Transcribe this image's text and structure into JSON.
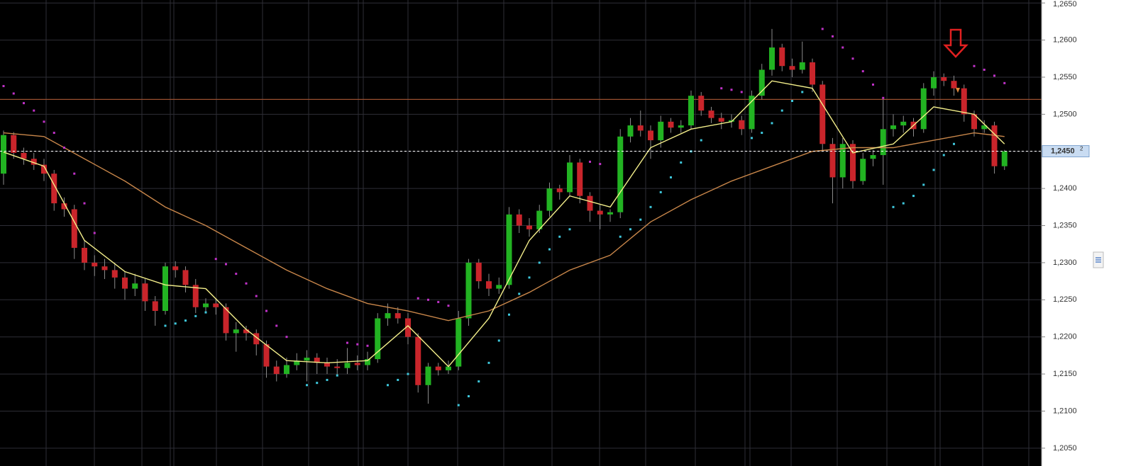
{
  "chart_data": {
    "type": "candlestick",
    "ylim": [
      1.2026,
      1.2654
    ],
    "yticks": [
      {
        "value": 1.265,
        "label": "1,2650"
      },
      {
        "value": 1.26,
        "label": "1,2600"
      },
      {
        "value": 1.255,
        "label": "1,2550"
      },
      {
        "value": 1.25,
        "label": "1,2500"
      },
      {
        "value": 1.245,
        "label": "1,2450"
      },
      {
        "value": 1.24,
        "label": "1,2400"
      },
      {
        "value": 1.235,
        "label": "1,2350"
      },
      {
        "value": 1.23,
        "label": "1,2300"
      },
      {
        "value": 1.225,
        "label": "1,2250"
      },
      {
        "value": 1.22,
        "label": "1,2200"
      },
      {
        "value": 1.215,
        "label": "1,2150"
      },
      {
        "value": 1.21,
        "label": "1,2100"
      },
      {
        "value": 1.205,
        "label": "1,2050"
      }
    ],
    "grid": true,
    "up_color": "#22b322",
    "down_color": "#c9252b",
    "wick_color": "#8a8a8a",
    "last_price": {
      "value": 1.24502,
      "label": "1,2450",
      "pip": "2"
    },
    "level": {
      "value": 1.252,
      "color": "#9a5030"
    },
    "ohlc": [
      [
        1.242,
        1.2478,
        1.2405,
        1.2472
      ],
      [
        1.2472,
        1.2476,
        1.244,
        1.2448
      ],
      [
        1.2448,
        1.2455,
        1.2432,
        1.244
      ],
      [
        1.244,
        1.2448,
        1.2425,
        1.2432
      ],
      [
        1.2432,
        1.244,
        1.241,
        1.242
      ],
      [
        1.242,
        1.2425,
        1.237,
        1.238
      ],
      [
        1.238,
        1.2388,
        1.2362,
        1.2372
      ],
      [
        1.2372,
        1.2378,
        1.2305,
        1.232
      ],
      [
        1.232,
        1.233,
        1.229,
        1.23
      ],
      [
        1.23,
        1.231,
        1.2282,
        1.2295
      ],
      [
        1.2295,
        1.2305,
        1.2278,
        1.229
      ],
      [
        1.229,
        1.23,
        1.2265,
        1.228
      ],
      [
        1.228,
        1.2288,
        1.225,
        1.2265
      ],
      [
        1.2265,
        1.2285,
        1.2255,
        1.2272
      ],
      [
        1.2272,
        1.2278,
        1.2235,
        1.2248
      ],
      [
        1.2248,
        1.2255,
        1.2215,
        1.2235
      ],
      [
        1.2235,
        1.23,
        1.223,
        1.2295
      ],
      [
        1.2295,
        1.2302,
        1.228,
        1.229
      ],
      [
        1.229,
        1.2295,
        1.226,
        1.227
      ],
      [
        1.227,
        1.2278,
        1.2232,
        1.224
      ],
      [
        1.224,
        1.2252,
        1.2232,
        1.2245
      ],
      [
        1.2245,
        1.2252,
        1.223,
        1.224
      ],
      [
        1.224,
        1.2245,
        1.2195,
        1.2205
      ],
      [
        1.2205,
        1.222,
        1.218,
        1.221
      ],
      [
        1.221,
        1.2215,
        1.2195,
        1.2205
      ],
      [
        1.2205,
        1.221,
        1.2175,
        1.219
      ],
      [
        1.219,
        1.2195,
        1.2145,
        1.216
      ],
      [
        1.216,
        1.2168,
        1.214,
        1.215
      ],
      [
        1.215,
        1.2172,
        1.2145,
        1.2162
      ],
      [
        1.2162,
        1.2178,
        1.2155,
        1.2168
      ],
      [
        1.2168,
        1.2182,
        1.214,
        1.2172
      ],
      [
        1.2172,
        1.2178,
        1.215,
        1.2165
      ],
      [
        1.2165,
        1.2172,
        1.215,
        1.216
      ],
      [
        1.216,
        1.217,
        1.2148,
        1.2158
      ],
      [
        1.2158,
        1.2185,
        1.215,
        1.2165
      ],
      [
        1.2165,
        1.2175,
        1.2155,
        1.2162
      ],
      [
        1.2162,
        1.218,
        1.2155,
        1.217
      ],
      [
        1.217,
        1.2232,
        1.2165,
        1.2225
      ],
      [
        1.2225,
        1.2245,
        1.2215,
        1.2232
      ],
      [
        1.2232,
        1.224,
        1.2218,
        1.2225
      ],
      [
        1.2225,
        1.2232,
        1.219,
        1.22
      ],
      [
        1.22,
        1.2205,
        1.2125,
        1.2135
      ],
      [
        1.2135,
        1.2165,
        1.211,
        1.216
      ],
      [
        1.216,
        1.2165,
        1.2148,
        1.2155
      ],
      [
        1.2155,
        1.2168,
        1.215,
        1.216
      ],
      [
        1.216,
        1.2235,
        1.2155,
        1.2225
      ],
      [
        1.2225,
        1.2305,
        1.2215,
        1.23
      ],
      [
        1.23,
        1.2305,
        1.2265,
        1.2275
      ],
      [
        1.2275,
        1.2285,
        1.2255,
        1.2265
      ],
      [
        1.2265,
        1.228,
        1.2258,
        1.227
      ],
      [
        1.227,
        1.2375,
        1.2265,
        1.2365
      ],
      [
        1.2365,
        1.2372,
        1.234,
        1.235
      ],
      [
        1.235,
        1.236,
        1.2335,
        1.2345
      ],
      [
        1.2345,
        1.2378,
        1.234,
        1.237
      ],
      [
        1.237,
        1.2408,
        1.2362,
        1.24
      ],
      [
        1.24,
        1.2405,
        1.2385,
        1.2395
      ],
      [
        1.2395,
        1.2445,
        1.239,
        1.2435
      ],
      [
        1.2435,
        1.244,
        1.238,
        1.239
      ],
      [
        1.239,
        1.2395,
        1.2355,
        1.237
      ],
      [
        1.237,
        1.2378,
        1.2345,
        1.2365
      ],
      [
        1.2365,
        1.2372,
        1.2355,
        1.2368
      ],
      [
        1.2368,
        1.248,
        1.236,
        1.247
      ],
      [
        1.247,
        1.2495,
        1.2462,
        1.2485
      ],
      [
        1.2485,
        1.2505,
        1.247,
        1.2478
      ],
      [
        1.2478,
        1.2485,
        1.244,
        1.2465
      ],
      [
        1.2465,
        1.2498,
        1.2455,
        1.249
      ],
      [
        1.249,
        1.2495,
        1.2475,
        1.2482
      ],
      [
        1.2482,
        1.2492,
        1.2475,
        1.2485
      ],
      [
        1.2485,
        1.2532,
        1.248,
        1.2525
      ],
      [
        1.2525,
        1.253,
        1.2498,
        1.2505
      ],
      [
        1.2505,
        1.251,
        1.2488,
        1.2495
      ],
      [
        1.2495,
        1.2502,
        1.248,
        1.249
      ],
      [
        1.249,
        1.25,
        1.2482,
        1.2492
      ],
      [
        1.2492,
        1.2498,
        1.2472,
        1.248
      ],
      [
        1.248,
        1.2532,
        1.2475,
        1.2525
      ],
      [
        1.2525,
        1.2568,
        1.252,
        1.256
      ],
      [
        1.256,
        1.2615,
        1.2552,
        1.259
      ],
      [
        1.259,
        1.2595,
        1.2558,
        1.2565
      ],
      [
        1.2565,
        1.2575,
        1.255,
        1.256
      ],
      [
        1.256,
        1.2598,
        1.2555,
        1.257
      ],
      [
        1.257,
        1.2575,
        1.253,
        1.254
      ],
      [
        1.254,
        1.2545,
        1.245,
        1.246
      ],
      [
        1.246,
        1.2468,
        1.238,
        1.2415
      ],
      [
        1.2415,
        1.2468,
        1.24,
        1.246
      ],
      [
        1.246,
        1.2465,
        1.24,
        1.241
      ],
      [
        1.241,
        1.2448,
        1.2405,
        1.244
      ],
      [
        1.244,
        1.2452,
        1.243,
        1.2445
      ],
      [
        1.2445,
        1.252,
        1.2405,
        1.248
      ],
      [
        1.248,
        1.25,
        1.247,
        1.2485
      ],
      [
        1.2485,
        1.2498,
        1.2475,
        1.249
      ],
      [
        1.249,
        1.2495,
        1.247,
        1.248
      ],
      [
        1.248,
        1.2542,
        1.2475,
        1.2535
      ],
      [
        1.2535,
        1.2558,
        1.2525,
        1.255
      ],
      [
        1.255,
        1.2555,
        1.2538,
        1.2545
      ],
      [
        1.2545,
        1.2552,
        1.2525,
        1.2535
      ],
      [
        1.2535,
        1.254,
        1.249,
        1.25
      ],
      [
        1.25,
        1.2505,
        1.247,
        1.248
      ],
      [
        1.248,
        1.2492,
        1.2475,
        1.2485
      ],
      [
        1.2485,
        1.249,
        1.242,
        1.243
      ],
      [
        1.243,
        1.2452,
        1.2425,
        1.245
      ]
    ],
    "ma_x": [
      0,
      4,
      8,
      12,
      16,
      20,
      24,
      28,
      32,
      36,
      40,
      44,
      48,
      52,
      56,
      60,
      64,
      68,
      72,
      76,
      80,
      84,
      88,
      92,
      96,
      99
    ],
    "ma_fast": {
      "color": "#f3ee8a",
      "values": [
        1.2449,
        1.243,
        1.233,
        1.2288,
        1.227,
        1.2265,
        1.221,
        1.2168,
        1.2165,
        1.2168,
        1.2215,
        1.216,
        1.2225,
        1.233,
        1.239,
        1.2375,
        1.2455,
        1.248,
        1.249,
        1.2545,
        1.2535,
        1.2448,
        1.246,
        1.251,
        1.25,
        1.246
      ]
    },
    "ma_slow": {
      "color": "#c8864a",
      "values": [
        1.2475,
        1.247,
        1.244,
        1.241,
        1.2375,
        1.235,
        1.232,
        1.229,
        1.2265,
        1.2245,
        1.2235,
        1.2222,
        1.2235,
        1.226,
        1.229,
        1.231,
        1.2355,
        1.2385,
        1.241,
        1.243,
        1.245,
        1.2455,
        1.2455,
        1.2465,
        1.2475,
        1.247
      ]
    },
    "sar": {
      "above_color": "#c032c8",
      "below_color": "#3ec8dc",
      "values": [
        1.2538,
        1.2528,
        1.2515,
        1.2505,
        1.249,
        1.2475,
        1.2455,
        1.242,
        1.238,
        1.234,
        null,
        null,
        null,
        null,
        null,
        null,
        1.2215,
        1.2218,
        1.2222,
        1.2228,
        1.2233,
        1.2305,
        1.2298,
        1.2285,
        1.2272,
        1.2255,
        1.2235,
        1.2215,
        1.22,
        null,
        1.2135,
        1.2138,
        1.2142,
        1.2148,
        1.2192,
        1.219,
        1.2188,
        null,
        1.2135,
        1.2142,
        1.215,
        1.2252,
        1.225,
        1.2247,
        1.2242,
        1.2108,
        1.212,
        1.214,
        1.2165,
        1.2195,
        1.223,
        1.2258,
        1.228,
        1.23,
        1.2318,
        1.2335,
        1.2345,
        null,
        1.2436,
        1.2433,
        null,
        1.2335,
        1.2345,
        1.2358,
        1.2375,
        1.2395,
        1.2415,
        1.2435,
        1.245,
        1.2465,
        null,
        1.2535,
        1.2533,
        1.253,
        1.2468,
        1.2475,
        1.2488,
        1.2505,
        1.2518,
        1.253,
        null,
        1.2615,
        1.2605,
        1.259,
        1.2575,
        1.2558,
        1.254,
        1.2522,
        1.2375,
        1.238,
        1.239,
        1.2405,
        1.2425,
        1.2445,
        1.246,
        null,
        1.2565,
        1.256,
        1.2552,
        1.2542
      ]
    }
  }
}
